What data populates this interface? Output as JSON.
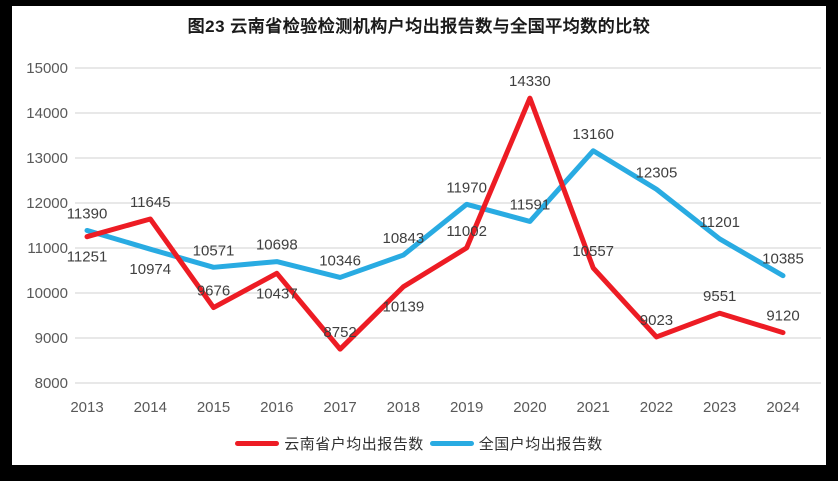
{
  "chart_data": {
    "type": "line",
    "title": "图23 云南省检验检测机构户均出报告数与全国平均数的比较",
    "categories": [
      "2013",
      "2014",
      "2015",
      "2016",
      "2017",
      "2018",
      "2019",
      "2020",
      "2021",
      "2022",
      "2023",
      "2024"
    ],
    "series": [
      {
        "name": "云南省户均出报告数",
        "color": "#ed1c24",
        "values": [
          11251,
          11645,
          9676,
          10437,
          8752,
          10139,
          11002,
          14330,
          10557,
          9023,
          9551,
          9120
        ],
        "label_positions": [
          "below",
          "above",
          "above",
          "below",
          "above",
          "below",
          "above",
          "above",
          "above",
          "above",
          "above",
          "above"
        ]
      },
      {
        "name": "全国户均出报告数",
        "color": "#29abe2",
        "values": [
          11390,
          10974,
          10571,
          10698,
          10346,
          10843,
          11970,
          11591,
          13160,
          12305,
          11201,
          10385
        ],
        "label_positions": [
          "above",
          "below",
          "above",
          "above",
          "above",
          "above",
          "above",
          "above",
          "above",
          "above",
          "above",
          "above"
        ]
      }
    ],
    "ylim": [
      8000,
      15000
    ],
    "ytick_step": 1000,
    "grid": "horizontal",
    "gridline_color": "#d9d9d9",
    "axis_label_color": "#595959",
    "data_label_color": "#3f3f3f",
    "legend_position": "bottom"
  }
}
